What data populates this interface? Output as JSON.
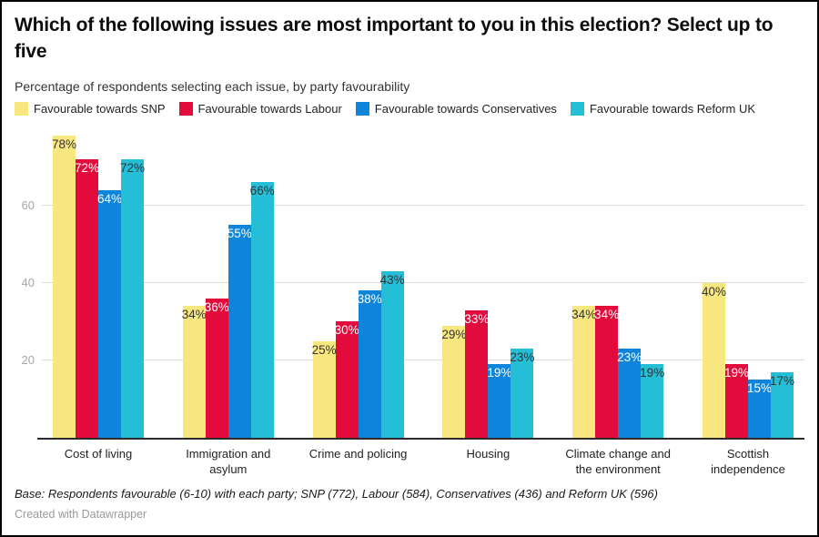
{
  "header": {
    "title": "Which of the following issues are most important to you in this election? Select up to five",
    "subtitle": "Percentage of respondents selecting each issue, by party favourability"
  },
  "chart_data": {
    "type": "bar",
    "categories": [
      "Cost of living",
      "Immigration and\nasylum",
      "Crime and policing",
      "Housing",
      "Climate change and\nthe environment",
      "Scottish\nindependence"
    ],
    "series": [
      {
        "name": "Favourable towards SNP",
        "color": "#F8E67E",
        "label_color": "#333333",
        "values": [
          78,
          34,
          25,
          29,
          34,
          40
        ]
      },
      {
        "name": "Favourable towards Labour",
        "color": "#E30A3C",
        "label_color": "#ffffff",
        "values": [
          72,
          36,
          30,
          33,
          34,
          19
        ]
      },
      {
        "name": "Favourable towards Conservatives",
        "color": "#0E85DA",
        "label_color": "#ffffff",
        "values": [
          64,
          55,
          38,
          19,
          23,
          15
        ]
      },
      {
        "name": "Favourable towards Reform UK",
        "color": "#24BED6",
        "label_color": "#333333",
        "values": [
          72,
          66,
          43,
          23,
          19,
          17
        ]
      }
    ],
    "value_suffix": "%",
    "yticks": [
      20,
      40,
      60
    ],
    "ylim": [
      0,
      80
    ],
    "grid": true,
    "legend_position": "top",
    "colors": {
      "gridline": "#dddddd",
      "axis_line": "#2b2b2b",
      "tick_label": "#a6a6a6"
    }
  },
  "footer": {
    "note": "Base: Respondents favourable (6-10) with each party; SNP (772), Labour (584), Conservatives (436) and Reform UK (596)",
    "attribution": "Created with Datawrapper"
  }
}
